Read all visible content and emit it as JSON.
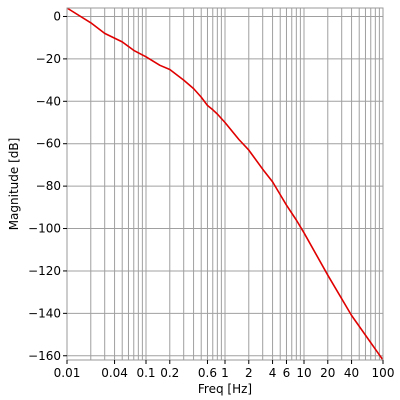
{
  "chart_data": {
    "type": "line",
    "xscale": "log",
    "xlim": [
      0.01,
      100
    ],
    "ylim": [
      -162,
      4
    ],
    "grid": true,
    "xlabel": "Freq [Hz]",
    "ylabel": "Magnitude [dB]",
    "x_ticks": [
      0.01,
      0.04,
      0.1,
      0.2,
      0.6,
      1,
      2,
      4,
      6,
      10,
      20,
      40,
      100
    ],
    "x_tick_labels": [
      "0.01",
      "0.04",
      "0.1",
      "0.2",
      "0.6",
      "1",
      "2",
      "4",
      "6",
      "10",
      "20",
      "40",
      "100"
    ],
    "y_ticks": [
      0,
      -20,
      -40,
      -60,
      -80,
      -100,
      -120,
      -140,
      -160
    ],
    "y_tick_labels": [
      "0",
      "−20",
      "−40",
      "−60",
      "−80",
      "−100",
      "−120",
      "−140",
      "−160"
    ],
    "line_color": "#e00000",
    "grid_color": "#a0a0a0",
    "series": [
      {
        "x": [
          0.01,
          0.02,
          0.03,
          0.05,
          0.07,
          0.1,
          0.15,
          0.2,
          0.3,
          0.4,
          0.5,
          0.6,
          0.7,
          0.8,
          1,
          1.5,
          2,
          3,
          4,
          5,
          6,
          8,
          10,
          20,
          40,
          100
        ],
        "y": [
          4,
          -3,
          -8,
          -12,
          -16,
          -19,
          -23,
          -25,
          -30,
          -34,
          -38,
          -42,
          -44,
          -46,
          -50,
          -58,
          -63,
          -72,
          -78,
          -84,
          -89,
          -96,
          -102,
          -122,
          -141,
          -162
        ]
      }
    ]
  }
}
